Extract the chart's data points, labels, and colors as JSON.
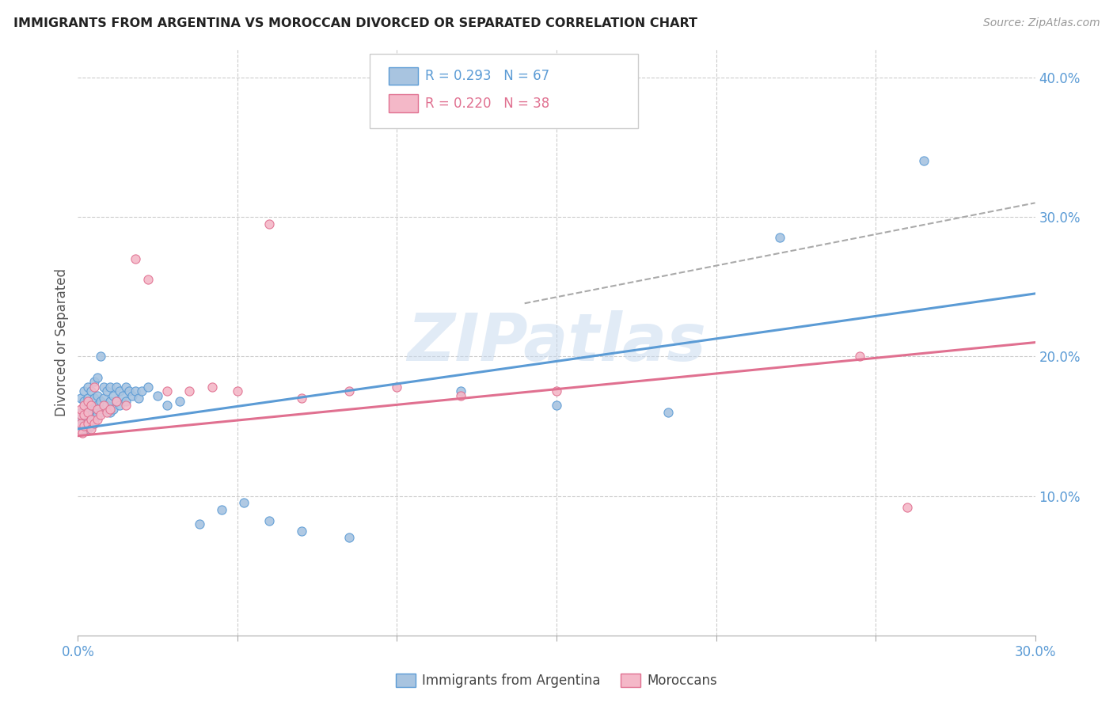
{
  "title": "IMMIGRANTS FROM ARGENTINA VS MOROCCAN DIVORCED OR SEPARATED CORRELATION CHART",
  "source": "Source: ZipAtlas.com",
  "ylabel": "Divorced or Separated",
  "xlim": [
    0.0,
    0.3
  ],
  "ylim": [
    0.0,
    0.42
  ],
  "y_ticks_right": [
    0.1,
    0.2,
    0.3,
    0.4
  ],
  "y_tick_labels_right": [
    "10.0%",
    "20.0%",
    "30.0%",
    "40.0%"
  ],
  "color_blue": "#a8c4e0",
  "color_blue_line": "#5b9bd5",
  "color_pink": "#f4b8c8",
  "color_pink_line": "#e07090",
  "watermark": "ZIPatlas",
  "argentina_x": [
    0.0005,
    0.001,
    0.001,
    0.001,
    0.0015,
    0.002,
    0.002,
    0.002,
    0.002,
    0.0025,
    0.003,
    0.003,
    0.003,
    0.003,
    0.003,
    0.004,
    0.004,
    0.004,
    0.004,
    0.005,
    0.005,
    0.005,
    0.005,
    0.006,
    0.006,
    0.006,
    0.006,
    0.007,
    0.007,
    0.007,
    0.008,
    0.008,
    0.008,
    0.009,
    0.009,
    0.01,
    0.01,
    0.01,
    0.011,
    0.011,
    0.012,
    0.012,
    0.013,
    0.013,
    0.014,
    0.015,
    0.015,
    0.016,
    0.017,
    0.018,
    0.019,
    0.02,
    0.022,
    0.025,
    0.028,
    0.032,
    0.038,
    0.045,
    0.052,
    0.06,
    0.07,
    0.085,
    0.12,
    0.15,
    0.185,
    0.22,
    0.265
  ],
  "argentina_y": [
    0.155,
    0.15,
    0.16,
    0.17,
    0.148,
    0.155,
    0.162,
    0.168,
    0.175,
    0.152,
    0.148,
    0.155,
    0.162,
    0.17,
    0.178,
    0.15,
    0.158,
    0.165,
    0.175,
    0.155,
    0.162,
    0.17,
    0.182,
    0.158,
    0.165,
    0.172,
    0.185,
    0.16,
    0.168,
    0.2,
    0.162,
    0.17,
    0.178,
    0.165,
    0.175,
    0.16,
    0.168,
    0.178,
    0.162,
    0.172,
    0.168,
    0.178,
    0.165,
    0.175,
    0.172,
    0.168,
    0.178,
    0.175,
    0.172,
    0.175,
    0.17,
    0.175,
    0.178,
    0.172,
    0.165,
    0.168,
    0.08,
    0.09,
    0.095,
    0.082,
    0.075,
    0.07,
    0.175,
    0.165,
    0.16,
    0.285,
    0.34
  ],
  "morocco_x": [
    0.0005,
    0.001,
    0.001,
    0.001,
    0.0015,
    0.002,
    0.002,
    0.002,
    0.003,
    0.003,
    0.003,
    0.004,
    0.004,
    0.004,
    0.005,
    0.005,
    0.006,
    0.006,
    0.007,
    0.008,
    0.009,
    0.01,
    0.012,
    0.015,
    0.018,
    0.022,
    0.028,
    0.035,
    0.042,
    0.05,
    0.06,
    0.07,
    0.085,
    0.1,
    0.12,
    0.15,
    0.245,
    0.26
  ],
  "morocco_y": [
    0.148,
    0.152,
    0.158,
    0.162,
    0.145,
    0.15,
    0.158,
    0.165,
    0.152,
    0.16,
    0.168,
    0.148,
    0.155,
    0.165,
    0.152,
    0.178,
    0.155,
    0.162,
    0.158,
    0.165,
    0.16,
    0.162,
    0.168,
    0.165,
    0.27,
    0.255,
    0.175,
    0.175,
    0.178,
    0.175,
    0.295,
    0.17,
    0.175,
    0.178,
    0.172,
    0.175,
    0.2,
    0.092
  ],
  "arg_line_x0": 0.0,
  "arg_line_y0": 0.148,
  "arg_line_x1": 0.3,
  "arg_line_y1": 0.245,
  "mor_line_x0": 0.0,
  "mor_line_y0": 0.143,
  "mor_line_x1": 0.3,
  "mor_line_y1": 0.21,
  "dash_line_x0": 0.14,
  "dash_line_y0": 0.238,
  "dash_line_x1": 0.3,
  "dash_line_y1": 0.31
}
